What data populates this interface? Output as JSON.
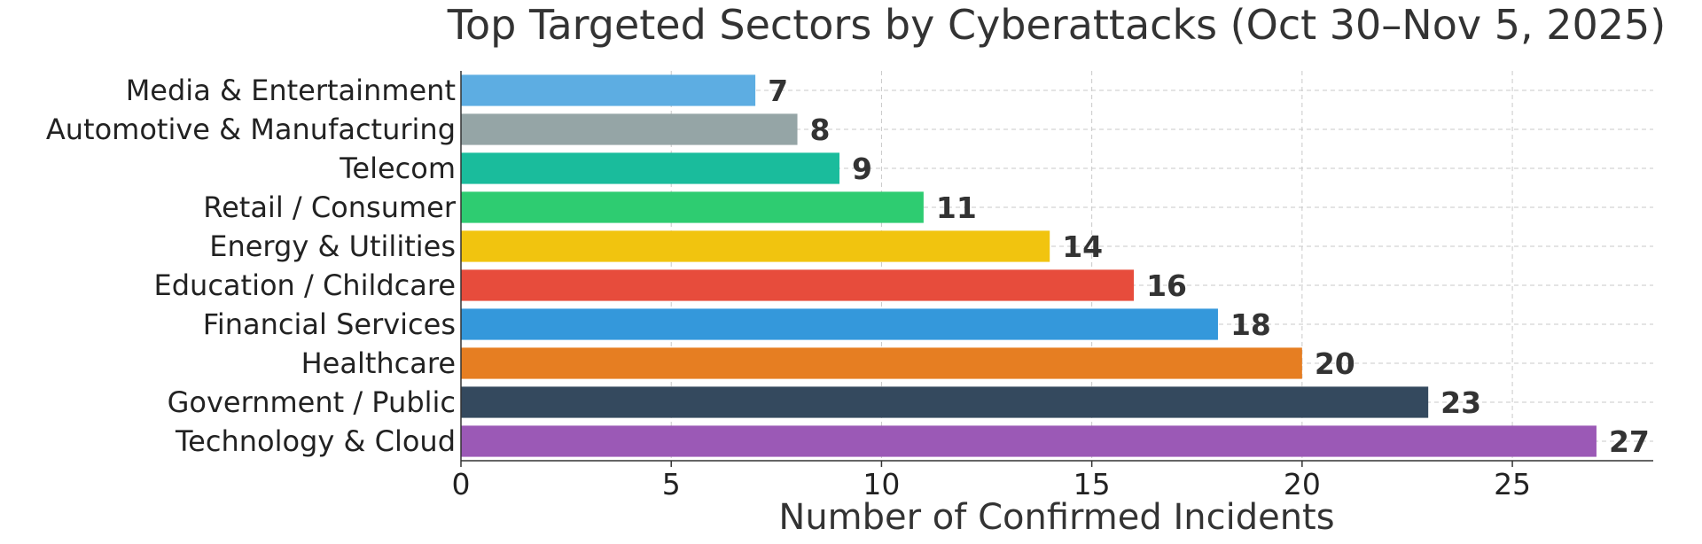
{
  "chart_data": {
    "type": "bar",
    "orientation": "horizontal",
    "title": "Top Targeted Sectors by Cyberattacks (Oct 30–Nov 5, 2025)",
    "xlabel": "Number of Confirmed Incidents",
    "ylabel": "",
    "xlim": [
      0,
      28.35
    ],
    "xticks": [
      0,
      5,
      10,
      15,
      20,
      25
    ],
    "xtick_labels": [
      "0",
      "5",
      "10",
      "15",
      "20",
      "25"
    ],
    "grid": true,
    "categories": [
      "Technology & Cloud",
      "Government / Public",
      "Healthcare",
      "Financial Services",
      "Education / Childcare",
      "Energy & Utilities",
      "Retail / Consumer",
      "Telecom",
      "Automotive & Manufacturing",
      "Media & Entertainment"
    ],
    "values": [
      27,
      23,
      20,
      18,
      16,
      14,
      11,
      9,
      8,
      7
    ],
    "value_labels": [
      "27",
      "23",
      "20",
      "18",
      "16",
      "14",
      "11",
      "9",
      "8",
      "7"
    ],
    "colors": [
      "#9b59b6",
      "#34495e",
      "#e67e22",
      "#3498db",
      "#e74c3c",
      "#f1c40f",
      "#2ecc71",
      "#1abc9c",
      "#95a5a6",
      "#5dade2"
    ]
  }
}
